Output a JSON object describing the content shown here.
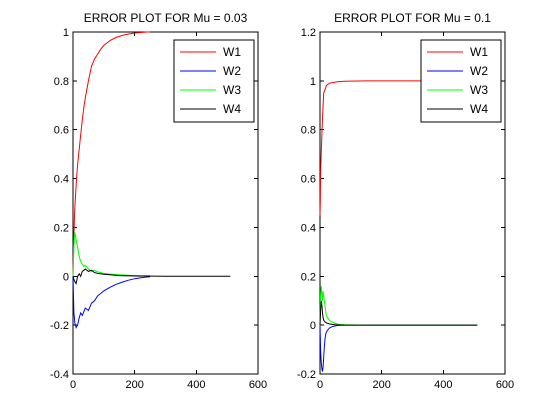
{
  "chart_data": [
    {
      "type": "line",
      "title": "ERROR PLOT FOR Mu = 0.03",
      "xlabel": "",
      "ylabel": "",
      "xlim": [
        0,
        600
      ],
      "ylim": [
        -0.4,
        1
      ],
      "x_ticks": [
        0,
        200,
        400,
        600
      ],
      "y_ticks": [
        -0.4,
        -0.2,
        0,
        0.2,
        0.4,
        0.6,
        0.8,
        1
      ],
      "x_tick_labels": [
        "0",
        "200",
        "400",
        "600"
      ],
      "y_tick_labels": [
        "-0.4",
        "-0.2",
        "0",
        "0.2",
        "0.4",
        "0.6",
        "0.8",
        "1"
      ],
      "grid": false,
      "legend_position": "top-right",
      "series": [
        {
          "name": "W1",
          "color": "#ff0000",
          "x": [
            0,
            2,
            5,
            8,
            12,
            16,
            20,
            25,
            30,
            35,
            40,
            50,
            60,
            70,
            80,
            90,
            100,
            110,
            120,
            140,
            160,
            180,
            200,
            220,
            240,
            250
          ],
          "y": [
            0.0,
            0.12,
            0.25,
            0.33,
            0.41,
            0.47,
            0.52,
            0.58,
            0.64,
            0.69,
            0.73,
            0.8,
            0.86,
            0.89,
            0.91,
            0.93,
            0.945,
            0.955,
            0.965,
            0.978,
            0.986,
            0.992,
            0.996,
            0.998,
            1.0,
            1.0
          ]
        },
        {
          "name": "W2",
          "color": "#0000ff",
          "x": [
            0,
            3,
            6,
            10,
            15,
            20,
            25,
            30,
            40,
            50,
            60,
            70,
            80,
            90,
            100,
            120,
            140,
            160,
            180,
            200,
            220,
            240,
            250
          ],
          "y": [
            0.0,
            -0.15,
            -0.19,
            -0.21,
            -0.2,
            -0.17,
            -0.15,
            -0.16,
            -0.13,
            -0.14,
            -0.11,
            -0.1,
            -0.08,
            -0.07,
            -0.06,
            -0.045,
            -0.033,
            -0.024,
            -0.016,
            -0.01,
            -0.006,
            -0.003,
            -0.002
          ]
        },
        {
          "name": "W3",
          "color": "#00ff00",
          "x": [
            0,
            3,
            6,
            10,
            15,
            20,
            25,
            30,
            35,
            40,
            50,
            60,
            70,
            80,
            100,
            120,
            150,
            180,
            210,
            240,
            250
          ],
          "y": [
            0.0,
            0.12,
            0.18,
            0.15,
            0.12,
            0.08,
            0.06,
            0.05,
            0.04,
            0.045,
            0.03,
            0.02,
            0.025,
            0.018,
            0.012,
            0.009,
            0.006,
            0.004,
            0.003,
            0.002,
            0.002
          ]
        },
        {
          "name": "W4",
          "color": "#000000",
          "x": [
            0,
            5,
            10,
            15,
            20,
            25,
            30,
            35,
            40,
            50,
            60,
            70,
            80,
            100,
            120,
            150,
            200,
            300,
            400,
            500,
            510
          ],
          "y": [
            0.0,
            -0.02,
            -0.03,
            0.0,
            0.01,
            0.0,
            0.02,
            0.025,
            0.03,
            0.02,
            0.025,
            0.015,
            0.012,
            0.008,
            0.006,
            0.003,
            0.001,
            0.0,
            0.0,
            0.0,
            0.0
          ]
        }
      ]
    },
    {
      "type": "line",
      "title": "ERROR PLOT FOR Mu = 0.1",
      "xlabel": "",
      "ylabel": "",
      "xlim": [
        0,
        600
      ],
      "ylim": [
        -0.2,
        1.2
      ],
      "x_ticks": [
        0,
        200,
        400,
        600
      ],
      "y_ticks": [
        -0.2,
        0,
        0.2,
        0.4,
        0.6,
        0.8,
        1,
        1.2
      ],
      "x_tick_labels": [
        "0",
        "200",
        "400",
        "600"
      ],
      "y_tick_labels": [
        "-0.2",
        "0",
        "0.2",
        "0.4",
        "0.6",
        "0.8",
        "1",
        "1.2"
      ],
      "grid": false,
      "legend_position": "top-right",
      "series": [
        {
          "name": "W1",
          "color": "#ff0000",
          "x": [
            0,
            1,
            2,
            4,
            6,
            8,
            10,
            12,
            15,
            18,
            20,
            25,
            30,
            40,
            50,
            60,
            80,
            100,
            150,
            200,
            300,
            400,
            500,
            510
          ],
          "y": [
            0.45,
            0.5,
            0.62,
            0.7,
            0.78,
            0.85,
            0.9,
            0.95,
            0.96,
            0.97,
            0.98,
            0.985,
            0.99,
            0.993,
            0.995,
            0.997,
            0.998,
            0.999,
            1.0,
            1.0,
            1.0,
            1.0,
            1.0,
            1.0
          ]
        },
        {
          "name": "W2",
          "color": "#0000ff",
          "x": [
            0,
            2,
            4,
            6,
            8,
            10,
            12,
            14,
            16,
            18,
            20,
            25,
            30,
            40,
            50,
            60,
            80,
            100,
            150,
            200,
            300,
            400,
            510
          ],
          "y": [
            0.0,
            -0.1,
            -0.15,
            -0.18,
            -0.19,
            -0.17,
            -0.13,
            -0.09,
            -0.06,
            -0.04,
            -0.03,
            -0.02,
            -0.012,
            -0.006,
            -0.003,
            -0.001,
            0.0,
            0.0,
            0.0,
            0.0,
            0.0,
            0.0,
            0.0
          ]
        },
        {
          "name": "W3",
          "color": "#00ff00",
          "x": [
            0,
            2,
            4,
            6,
            8,
            10,
            12,
            15,
            18,
            20,
            25,
            30,
            40,
            50,
            60,
            80,
            100,
            150,
            200,
            300,
            400,
            510
          ],
          "y": [
            0.0,
            0.12,
            0.16,
            0.13,
            0.1,
            0.14,
            0.12,
            0.09,
            0.06,
            0.04,
            0.03,
            0.02,
            0.012,
            0.007,
            0.004,
            0.002,
            0.001,
            0.0,
            0.0,
            0.0,
            0.0,
            0.0
          ]
        },
        {
          "name": "W4",
          "color": "#000000",
          "x": [
            0,
            2,
            4,
            6,
            8,
            10,
            12,
            15,
            20,
            25,
            30,
            40,
            50,
            60,
            80,
            100,
            150,
            200,
            300,
            400,
            510
          ],
          "y": [
            0.0,
            0.06,
            0.1,
            0.08,
            0.05,
            0.03,
            0.02,
            0.015,
            0.01,
            0.007,
            0.005,
            0.003,
            0.002,
            0.001,
            0.0,
            0.0,
            0.0,
            0.0,
            0.0,
            0.0,
            0.0
          ]
        }
      ]
    }
  ]
}
